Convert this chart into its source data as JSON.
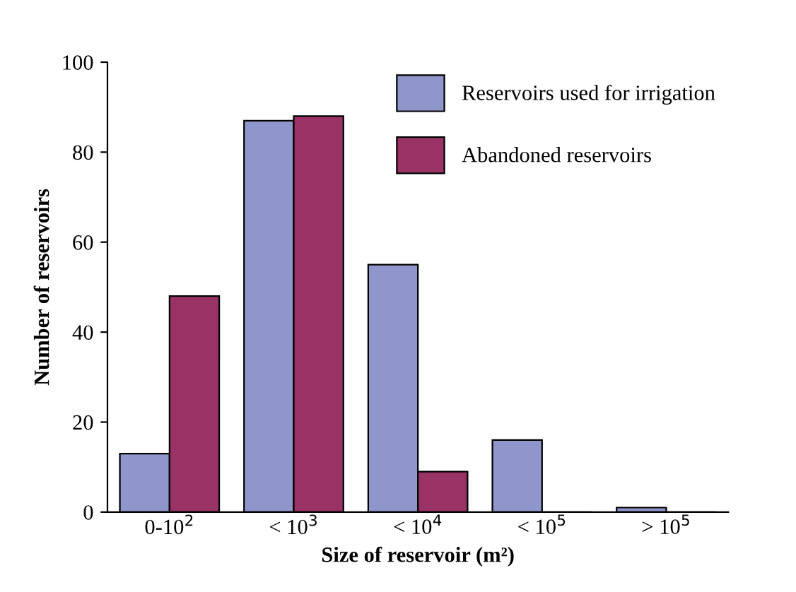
{
  "chart_data": {
    "type": "bar",
    "xlabel": "Size of reservoir (m²)",
    "ylabel": "Number of reservoirs",
    "categories": [
      "0-10$^{2}$",
      "< 10$^{3}$",
      "< 10$^{4}$",
      "< 10$^{5}$",
      "> 10$^{5}$"
    ],
    "series": [
      {
        "name": "Reservoirs used for irrigation",
        "color": "#8f96cc",
        "values": [
          13,
          87,
          55,
          16,
          1
        ]
      },
      {
        "name": "Abandoned reservoirs",
        "color": "#993366",
        "values": [
          48,
          88,
          9,
          0,
          0
        ]
      }
    ],
    "ylim": [
      0,
      100
    ],
    "yticks": [
      0,
      20,
      40,
      60,
      80,
      100
    ],
    "grid": false,
    "legend": "top right"
  }
}
